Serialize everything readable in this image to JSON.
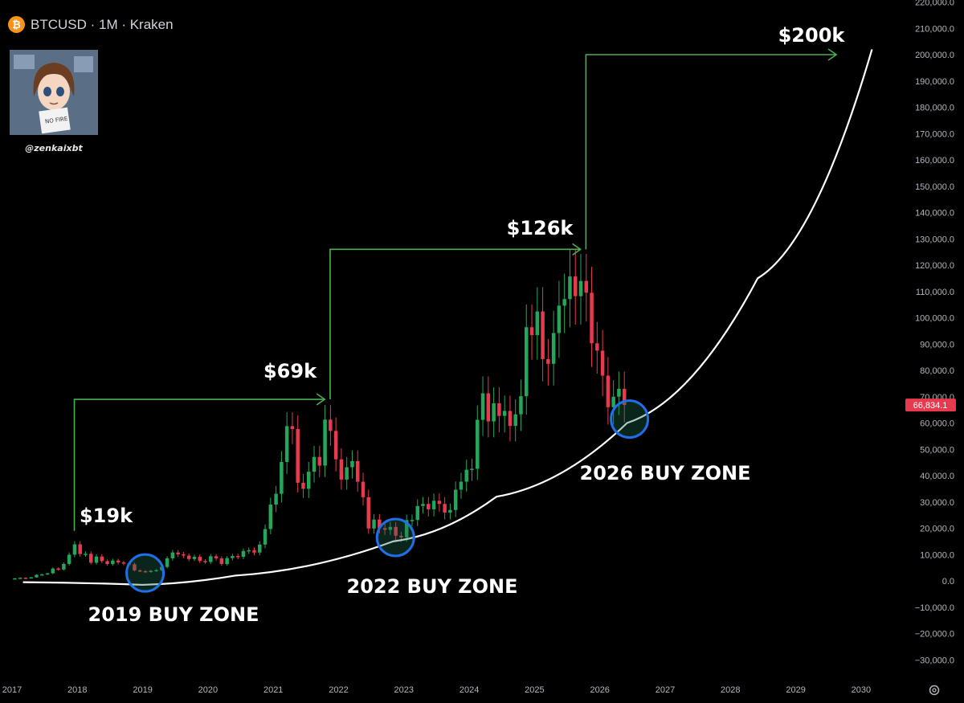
{
  "header": {
    "coin_icon": "bitcoin-icon",
    "title": "BTCUSD · 1M · Kraken"
  },
  "avatar": {
    "handle": "@zenkaixbt",
    "sign_text": "NO FIRE"
  },
  "colors": {
    "background": "#000000",
    "bullish": "#26a65b",
    "bearish": "#e83a4f",
    "arrow": "#4caf50",
    "curve": "#ffffff",
    "circle": "#1f6fe8",
    "price_tag": "#e83a4f"
  },
  "price_tag": "66,834.1",
  "chart_data": {
    "type": "candlestick",
    "title": "BTCUSD · 1M · Kraken",
    "ylim": [
      -35000,
      220000
    ],
    "xlim": [
      "2017-01",
      "2030-06"
    ],
    "y_ticks": [
      "220,000.0",
      "210,000.0",
      "200,000.0",
      "190,000.0",
      "180,000.0",
      "170,000.0",
      "160,000.0",
      "150,000.0",
      "140,000.0",
      "130,000.0",
      "120,000.0",
      "110,000.0",
      "100,000.0",
      "90,000.0",
      "80,000.0",
      "70,000.0",
      "60,000.0",
      "50,000.0",
      "40,000.0",
      "30,000.0",
      "20,000.0",
      "10,000.0",
      "0.0",
      "−10,000.0",
      "−20,000.0",
      "−30,000.0"
    ],
    "x_ticks": [
      "2017",
      "2018",
      "2019",
      "2020",
      "2021",
      "2022",
      "2023",
      "2024",
      "2025",
      "2026",
      "2027",
      "2028",
      "2029",
      "2030"
    ],
    "current_price": 66834.1,
    "monthly_closes": [
      [
        "2017-01",
        970
      ],
      [
        "2017-02",
        1190
      ],
      [
        "2017-03",
        1080
      ],
      [
        "2017-04",
        1350
      ],
      [
        "2017-05",
        2300
      ],
      [
        "2017-06",
        2480
      ],
      [
        "2017-07",
        2870
      ],
      [
        "2017-08",
        4700
      ],
      [
        "2017-09",
        4340
      ],
      [
        "2017-10",
        6450
      ],
      [
        "2017-11",
        9950
      ],
      [
        "2017-12",
        13900
      ],
      [
        "2018-01",
        10200
      ],
      [
        "2018-02",
        10300
      ],
      [
        "2018-03",
        6900
      ],
      [
        "2018-04",
        9250
      ],
      [
        "2018-05",
        7500
      ],
      [
        "2018-06",
        6400
      ],
      [
        "2018-07",
        7730
      ],
      [
        "2018-08",
        7000
      ],
      [
        "2018-09",
        6600
      ],
      [
        "2018-10",
        6300
      ],
      [
        "2018-11",
        4000
      ],
      [
        "2018-12",
        3700
      ],
      [
        "2019-01",
        3450
      ],
      [
        "2019-02",
        3820
      ],
      [
        "2019-03",
        4100
      ],
      [
        "2019-04",
        5300
      ],
      [
        "2019-05",
        8570
      ],
      [
        "2019-06",
        10800
      ],
      [
        "2019-07",
        10080
      ],
      [
        "2019-08",
        9600
      ],
      [
        "2019-09",
        8300
      ],
      [
        "2019-10",
        9150
      ],
      [
        "2019-11",
        7550
      ],
      [
        "2019-12",
        7200
      ],
      [
        "2020-01",
        9350
      ],
      [
        "2020-02",
        8550
      ],
      [
        "2020-03",
        6400
      ],
      [
        "2020-04",
        8650
      ],
      [
        "2020-05",
        9450
      ],
      [
        "2020-06",
        9140
      ],
      [
        "2020-07",
        11350
      ],
      [
        "2020-08",
        11650
      ],
      [
        "2020-09",
        10780
      ],
      [
        "2020-10",
        13800
      ],
      [
        "2020-11",
        19700
      ],
      [
        "2020-12",
        29000
      ],
      [
        "2021-01",
        33100
      ],
      [
        "2021-02",
        45200
      ],
      [
        "2021-03",
        58800
      ],
      [
        "2021-04",
        57700
      ],
      [
        "2021-05",
        37300
      ],
      [
        "2021-06",
        35000
      ],
      [
        "2021-07",
        41500
      ],
      [
        "2021-08",
        47100
      ],
      [
        "2021-09",
        43800
      ],
      [
        "2021-10",
        61300
      ],
      [
        "2021-11",
        57000
      ],
      [
        "2021-12",
        46200
      ],
      [
        "2022-01",
        38500
      ],
      [
        "2022-02",
        43200
      ],
      [
        "2022-03",
        45500
      ],
      [
        "2022-04",
        37700
      ],
      [
        "2022-05",
        31800
      ],
      [
        "2022-06",
        19900
      ],
      [
        "2022-07",
        23300
      ],
      [
        "2022-08",
        20050
      ],
      [
        "2022-09",
        19400
      ],
      [
        "2022-10",
        20500
      ],
      [
        "2022-11",
        17150
      ],
      [
        "2022-12",
        16550
      ],
      [
        "2023-01",
        23100
      ],
      [
        "2023-02",
        23150
      ],
      [
        "2023-03",
        28450
      ],
      [
        "2023-04",
        29250
      ],
      [
        "2023-05",
        27200
      ],
      [
        "2023-06",
        30450
      ],
      [
        "2023-07",
        29250
      ],
      [
        "2023-08",
        25950
      ],
      [
        "2023-09",
        26950
      ],
      [
        "2023-10",
        34650
      ],
      [
        "2023-11",
        37700
      ],
      [
        "2023-12",
        42250
      ],
      [
        "2024-01",
        42600
      ],
      [
        "2024-02",
        61200
      ],
      [
        "2024-03",
        71300
      ],
      [
        "2024-04",
        60600
      ],
      [
        "2024-05",
        67500
      ],
      [
        "2024-06",
        62700
      ],
      [
        "2024-07",
        64600
      ],
      [
        "2024-08",
        58900
      ],
      [
        "2024-09",
        63300
      ],
      [
        "2024-10",
        70200
      ],
      [
        "2024-11",
        96400
      ],
      [
        "2024-12",
        93400
      ],
      [
        "2025-01",
        102400
      ],
      [
        "2025-02",
        84300
      ],
      [
        "2025-03",
        82500
      ],
      [
        "2025-04",
        94200
      ],
      [
        "2025-05",
        104600
      ],
      [
        "2025-06",
        107100
      ],
      [
        "2025-07",
        115700
      ],
      [
        "2025-08",
        108200
      ],
      [
        "2025-09",
        114000
      ],
      [
        "2025-10",
        109500
      ],
      [
        "2025-11",
        90300
      ],
      [
        "2025-12",
        87500
      ],
      [
        "2026-01",
        78000
      ],
      [
        "2026-02",
        66000
      ],
      [
        "2026-03",
        70000
      ],
      [
        "2026-04",
        73000
      ],
      [
        "2026-05",
        66834
      ]
    ],
    "annotations": [
      {
        "text": "$19k",
        "x": "2017-12",
        "y": 19000
      },
      {
        "text": "$69k",
        "x": "2021-11",
        "y": 69000
      },
      {
        "text": "$126k",
        "x": "2025-10",
        "y": 126000
      },
      {
        "text": "$200k",
        "x": "2029-09",
        "y": 200000
      },
      {
        "text": "2019 BUY ZONE",
        "x": "2019-01",
        "y": 4000
      },
      {
        "text": "2022 BUY ZONE",
        "x": "2022-11",
        "y": 16000
      },
      {
        "text": "2026 BUY ZONE",
        "x": "2026-06",
        "y": 61000
      }
    ],
    "arrows": [
      {
        "from_x": "2017-12",
        "from_y": 19000,
        "level": 69000,
        "to_x": "2021-10"
      },
      {
        "from_x": "2021-11",
        "from_y": 69000,
        "level": 126000,
        "to_x": "2025-09"
      },
      {
        "from_x": "2025-10",
        "from_y": 126000,
        "level": 200000,
        "to_x": "2029-08"
      }
    ],
    "curve_points": [
      [
        "2017-03",
        -500
      ],
      [
        "2019-01",
        -1500
      ],
      [
        "2020-06",
        2000
      ],
      [
        "2022-11",
        15000
      ],
      [
        "2024-06",
        32000
      ],
      [
        "2026-06",
        60000
      ],
      [
        "2028-06",
        115000
      ],
      [
        "2030-03",
        202000
      ]
    ]
  }
}
